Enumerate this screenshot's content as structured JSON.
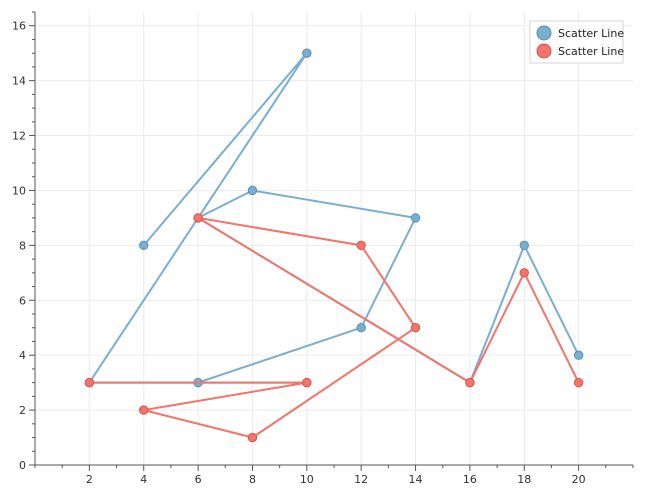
{
  "chart_data": {
    "type": "scatter",
    "title": "",
    "xlabel": "",
    "ylabel": "",
    "xlim": [
      0,
      22
    ],
    "ylim": [
      0,
      16.5
    ],
    "x_ticks": [
      2,
      4,
      6,
      8,
      10,
      12,
      14,
      16,
      18,
      20
    ],
    "y_ticks": [
      0,
      2,
      4,
      6,
      8,
      10,
      12,
      14,
      16
    ],
    "grid": true,
    "legend_position": "top-right",
    "series": [
      {
        "name": "Scatter Line",
        "color": "#7aaed0",
        "points": [
          {
            "x": 4,
            "y": 8
          },
          {
            "x": 10,
            "y": 15
          },
          {
            "x": 2,
            "y": 3
          },
          {
            "x": 10,
            "y": 3
          },
          {
            "x": 6,
            "y": 3
          },
          {
            "x": 12,
            "y": 5
          },
          {
            "x": 14,
            "y": 9
          },
          {
            "x": 8,
            "y": 10
          },
          {
            "x": 6,
            "y": 9
          },
          {
            "x": 16,
            "y": 3
          },
          {
            "x": 18,
            "y": 8
          },
          {
            "x": 20,
            "y": 4
          }
        ]
      },
      {
        "name": "Scatter Line",
        "color": "#f4736a",
        "points": [
          {
            "x": 2,
            "y": 3
          },
          {
            "x": 10,
            "y": 3
          },
          {
            "x": 4,
            "y": 2
          },
          {
            "x": 8,
            "y": 1
          },
          {
            "x": 14,
            "y": 5
          },
          {
            "x": 12,
            "y": 8
          },
          {
            "x": 6,
            "y": 9
          },
          {
            "x": 16,
            "y": 3
          },
          {
            "x": 18,
            "y": 7
          },
          {
            "x": 20,
            "y": 3
          }
        ]
      }
    ]
  }
}
